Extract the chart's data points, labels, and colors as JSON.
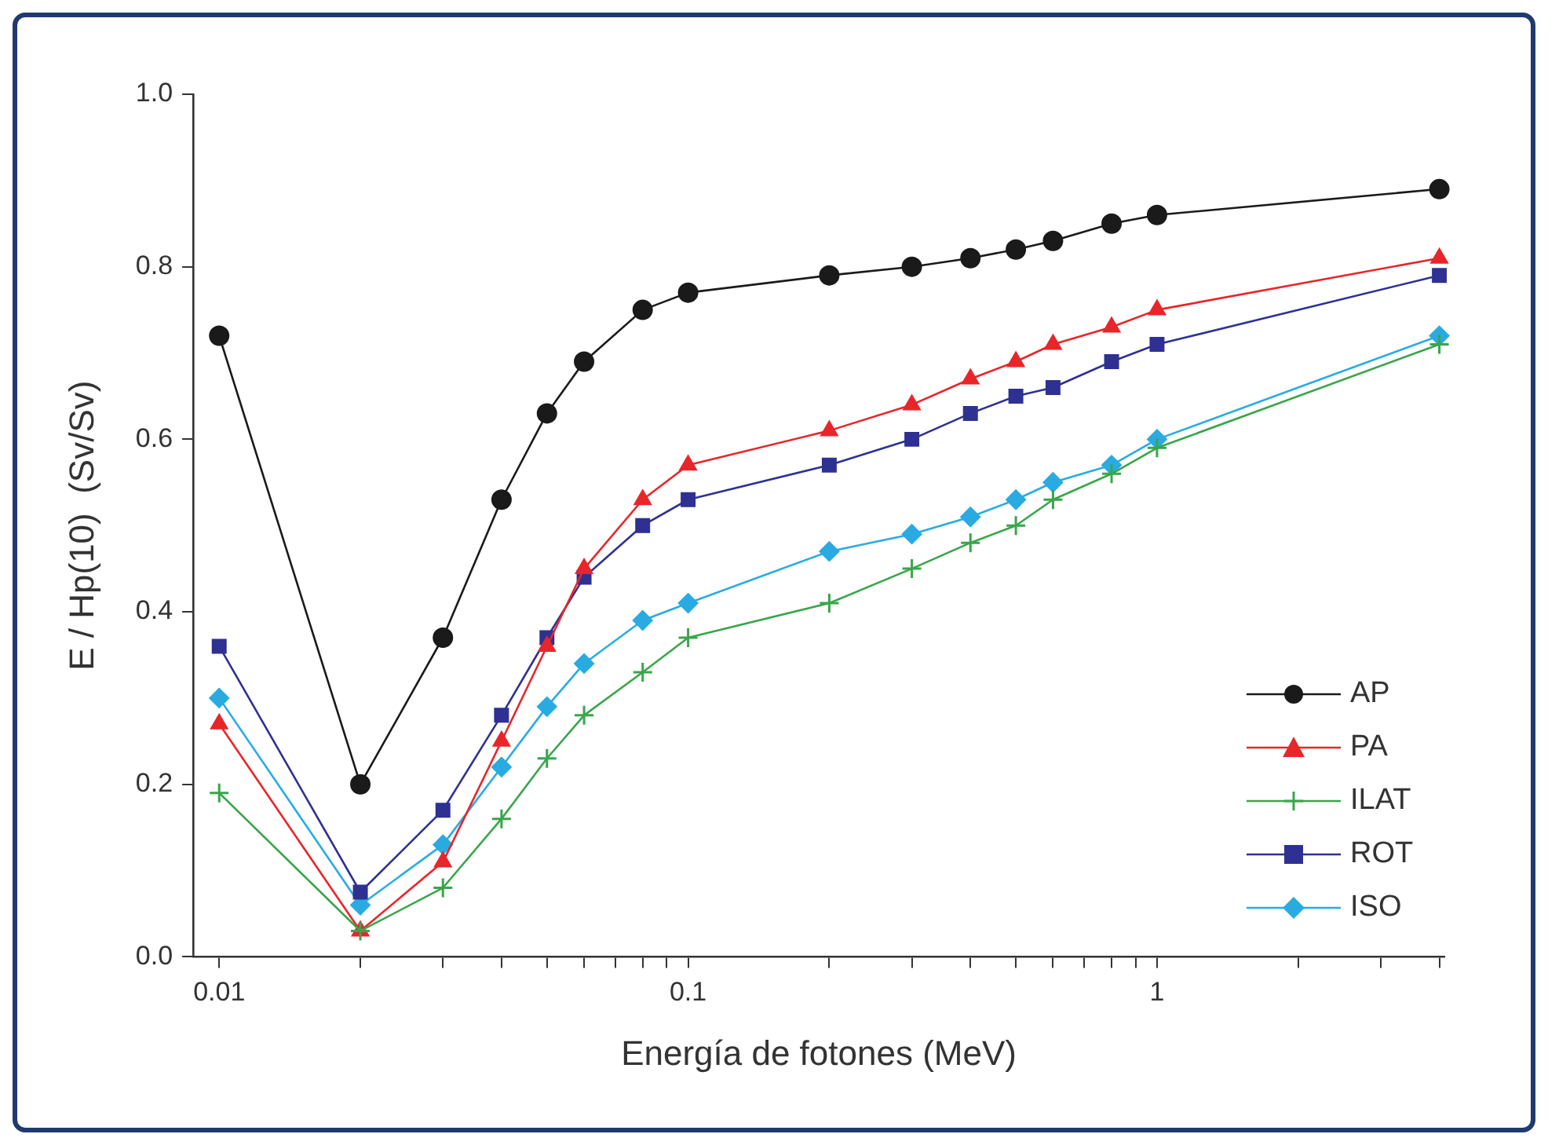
{
  "chart_data": {
    "type": "line",
    "xlabel": "Energía de fotones (MeV)",
    "ylabel": "E / Hp(10)  (Sv/Sv)",
    "log": "x",
    "xlim": [
      0.0088,
      4.1
    ],
    "ylim": [
      0,
      1
    ],
    "xticks": [
      0.01,
      {
        "value": 0.02,
        "label": null
      },
      {
        "value": 0.03,
        "label": null
      },
      {
        "value": 0.04,
        "label": null
      },
      {
        "value": 0.05,
        "label": null
      },
      {
        "value": 0.06,
        "label": null
      },
      {
        "value": 0.07,
        "label": null
      },
      {
        "value": 0.08,
        "label": null
      },
      {
        "value": 0.09,
        "label": null
      },
      0.1,
      {
        "value": 0.2,
        "label": null
      },
      {
        "value": 0.3,
        "label": null
      },
      {
        "value": 0.4,
        "label": null
      },
      {
        "value": 0.5,
        "label": null
      },
      {
        "value": 0.6,
        "label": null
      },
      {
        "value": 0.7,
        "label": null
      },
      {
        "value": 0.8,
        "label": null
      },
      {
        "value": 0.9,
        "label": null
      },
      1,
      {
        "value": 2,
        "label": null
      },
      {
        "value": 3,
        "label": null
      },
      {
        "value": 4,
        "label": null
      }
    ],
    "yticks": [
      {
        "value": 0,
        "label": "0.0"
      },
      {
        "value": 0.2,
        "label": "0.2"
      },
      {
        "value": 0.4,
        "label": "0.4"
      },
      {
        "value": 0.6,
        "label": "0.6"
      },
      {
        "value": 0.8,
        "label": "0.8"
      },
      {
        "value": 1,
        "label": "1.0"
      }
    ],
    "x": [
      0.01,
      0.02,
      0.03,
      0.04,
      0.05,
      0.06,
      0.08,
      0.1,
      0.2,
      0.3,
      0.4,
      0.5,
      0.6,
      0.8,
      1,
      4
    ],
    "grid": false,
    "legend": "bottom right",
    "line_style": "solid",
    "series": [
      {
        "name": "AP",
        "color": "#1a1a1a",
        "marker": "circle",
        "values": [
          0.72,
          0.2,
          0.37,
          0.53,
          0.63,
          0.69,
          0.75,
          0.77,
          0.79,
          0.8,
          0.81,
          0.82,
          0.83,
          0.85,
          0.86,
          0.89
        ]
      },
      {
        "name": "PA",
        "color": "#e8262a",
        "marker": "triangle",
        "values": [
          0.27,
          0.03,
          0.11,
          0.25,
          0.36,
          0.45,
          0.53,
          0.57,
          0.61,
          0.64,
          0.67,
          0.69,
          0.71,
          0.73,
          0.75,
          0.81
        ]
      },
      {
        "name": "ILAT",
        "color": "#3aa54a",
        "marker": "cross",
        "values": [
          0.19,
          0.03,
          0.08,
          0.16,
          0.23,
          0.28,
          0.33,
          0.37,
          0.41,
          0.45,
          0.48,
          0.5,
          0.53,
          0.56,
          0.59,
          0.71
        ]
      },
      {
        "name": "ROT",
        "color": "#2e3192",
        "marker": "square",
        "values": [
          0.36,
          0.075,
          0.17,
          0.28,
          0.37,
          0.44,
          0.5,
          0.53,
          0.57,
          0.6,
          0.63,
          0.65,
          0.66,
          0.69,
          0.71,
          0.79
        ]
      },
      {
        "name": "ISO",
        "color": "#29abe2",
        "marker": "diamond",
        "values": [
          0.3,
          0.06,
          0.13,
          0.22,
          0.29,
          0.34,
          0.39,
          0.41,
          0.47,
          0.49,
          0.51,
          0.53,
          0.55,
          0.57,
          0.6,
          0.72
        ]
      }
    ]
  }
}
